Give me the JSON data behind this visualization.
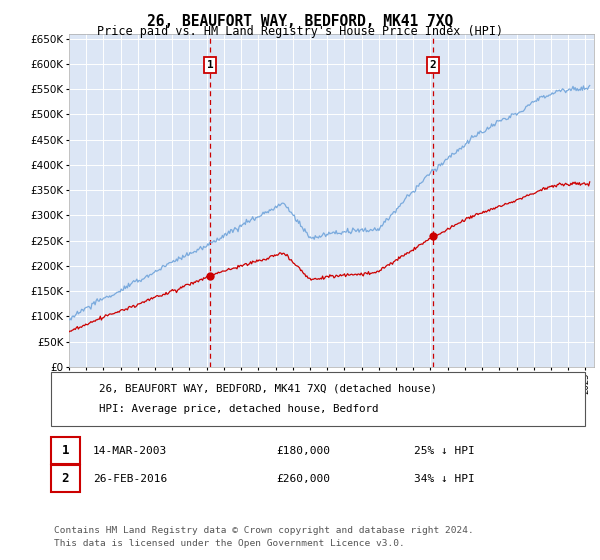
{
  "title": "26, BEAUFORT WAY, BEDFORD, MK41 7XQ",
  "subtitle": "Price paid vs. HM Land Registry's House Price Index (HPI)",
  "background_color": "#ffffff",
  "plot_bg_color": "#dce6f5",
  "grid_color": "#ffffff",
  "ylim": [
    0,
    660000
  ],
  "yticks": [
    0,
    50000,
    100000,
    150000,
    200000,
    250000,
    300000,
    350000,
    400000,
    450000,
    500000,
    550000,
    600000,
    650000
  ],
  "xlim_start": 1995.0,
  "xlim_end": 2025.5,
  "hpi_color": "#7aaadd",
  "price_color": "#cc0000",
  "annotation_box_color": "#cc0000",
  "sale1_date_num": 2003.19,
  "sale1_price": 180000,
  "sale2_date_num": 2016.15,
  "sale2_price": 260000,
  "legend_label_price": "26, BEAUFORT WAY, BEDFORD, MK41 7XQ (detached house)",
  "legend_label_hpi": "HPI: Average price, detached house, Bedford",
  "note1_label": "1",
  "note1_date": "14-MAR-2003",
  "note1_price": "£180,000",
  "note1_pct": "25% ↓ HPI",
  "note2_label": "2",
  "note2_date": "26-FEB-2016",
  "note2_price": "£260,000",
  "note2_pct": "34% ↓ HPI",
  "footer": "Contains HM Land Registry data © Crown copyright and database right 2024.\nThis data is licensed under the Open Government Licence v3.0."
}
